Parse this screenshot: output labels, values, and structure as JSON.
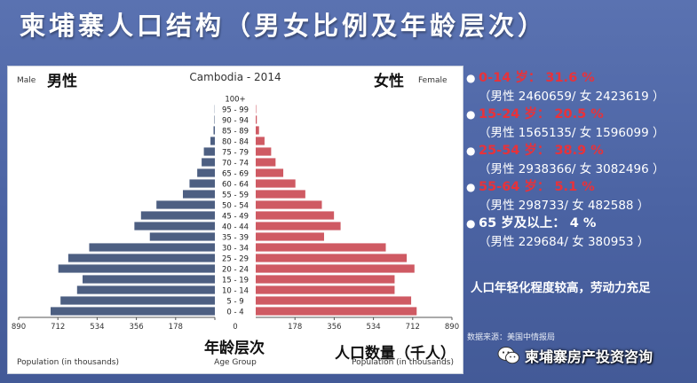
{
  "title": "柬埔寨人口结构（男女比例及年龄层次）",
  "colors": {
    "male": "#4d5f82",
    "female": "#cf5a63"
  },
  "chart_data": {
    "type": "bar",
    "orientation": "horizontal-pyramid",
    "title": "Cambodia - 2014",
    "left_label_en": "Male",
    "left_label_cn": "男性",
    "right_label_en": "Female",
    "right_label_cn": "女性",
    "xlabel": "Population (in thousands)",
    "xlabel_right": "Population (in thousands)",
    "xlabel_cn": "人口数量（千人）",
    "center_label": "Age Group",
    "center_label_cn": "年龄层次",
    "xlim": [
      0,
      890
    ],
    "xticks": [
      "890",
      "712",
      "534",
      "356",
      "178",
      "0",
      "178",
      "356",
      "534",
      "712",
      "890"
    ],
    "categories": [
      "100+",
      "95 - 99",
      "90 - 94",
      "85 - 89",
      "80 - 84",
      "75 - 79",
      "70 - 74",
      "65 - 69",
      "60 - 64",
      "55 - 59",
      "50 - 54",
      "45 - 49",
      "40 - 44",
      "35 - 39",
      "30 - 34",
      "25 - 29",
      "20 - 24",
      "15 - 19",
      "10 - 14",
      "5 - 9",
      "0 - 4"
    ],
    "series": [
      {
        "name": "Male",
        "values": [
          0,
          1,
          2,
          6,
          20,
          50,
          60,
          80,
          115,
          145,
          265,
          335,
          365,
          295,
          570,
          665,
          710,
          600,
          625,
          700,
          745
        ]
      },
      {
        "name": "Female",
        "values": [
          0,
          2,
          5,
          15,
          40,
          70,
          90,
          125,
          180,
          225,
          300,
          355,
          385,
          310,
          590,
          685,
          720,
          630,
          630,
          705,
          730
        ]
      }
    ]
  },
  "stats": [
    {
      "head": "0-14 岁： 31.6 %",
      "sub": "（男性 2460659/ 女 2423619 ）"
    },
    {
      "head": "15-24 岁： 20.5 %",
      "sub": "（男性 1565135/ 女 1596099 ）"
    },
    {
      "head": "25-54 岁： 38.9 %",
      "sub": "（男性 2938366/ 女 3082496 ）"
    },
    {
      "head": "55-64 岁： 5.1 %",
      "sub": "（男性 298733/ 女 482588 ）"
    },
    {
      "head": "65 岁及以上： 4 %",
      "sub": "（男性 229684/ 女 380953 ）"
    }
  ],
  "conclusion": "人口年轻化程度较高，劳动力充足",
  "source": "数据来源：美国中情报局",
  "watermark": "柬埔寨房产投资咨询"
}
